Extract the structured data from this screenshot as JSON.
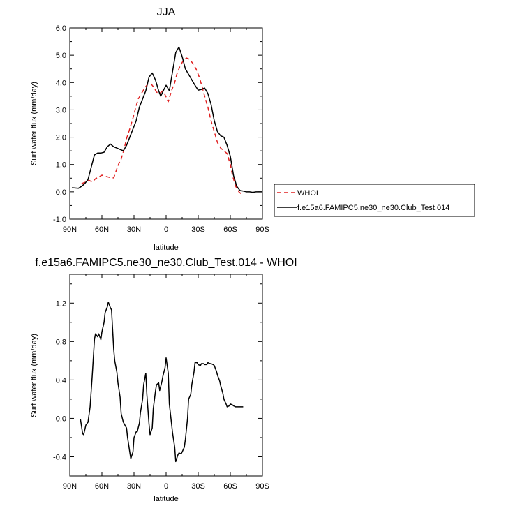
{
  "chart_data": [
    {
      "type": "line",
      "title": "JJA",
      "xlabel": "latitude",
      "ylabel": "Surf water flux (mm/day)",
      "xlim": [
        90,
        -90
      ],
      "ylim": [
        -1.0,
        6.0
      ],
      "x_ticks": [
        {
          "v": 90,
          "label": "90N"
        },
        {
          "v": 60,
          "label": "60N"
        },
        {
          "v": 30,
          "label": "30N"
        },
        {
          "v": 0,
          "label": "0"
        },
        {
          "v": -30,
          "label": "30S"
        },
        {
          "v": -60,
          "label": "60S"
        },
        {
          "v": -90,
          "label": "90S"
        }
      ],
      "y_ticks": [
        {
          "v": 6.0,
          "label": "6.0"
        },
        {
          "v": 5.0,
          "label": "5.0"
        },
        {
          "v": 4.0,
          "label": "4.0"
        },
        {
          "v": 3.0,
          "label": "3.0"
        },
        {
          "v": 2.0,
          "label": "2.0"
        },
        {
          "v": 1.0,
          "label": "1.0"
        },
        {
          "v": 0.0,
          "label": "0.0"
        },
        {
          "v": -1.0,
          "label": "-1.0"
        }
      ],
      "grid": false,
      "legend_position": "right",
      "series": [
        {
          "name": "WHOI",
          "color": "#e02020",
          "dash": "6,4",
          "x": [
            79,
            75,
            72,
            69,
            66,
            63,
            60,
            57,
            54,
            51,
            49,
            46,
            44,
            42,
            39,
            37,
            34,
            31,
            28,
            26,
            23,
            20,
            17,
            14,
            11,
            9,
            6,
            3,
            1,
            -2,
            -5,
            -8,
            -10,
            -13,
            -16,
            -19,
            -22,
            -25,
            -28,
            -31,
            -34,
            -36,
            -39,
            -42,
            -45,
            -48,
            -51,
            -54,
            -57,
            -60,
            -62,
            -65,
            -68,
            -71
          ],
          "y": [
            0.3,
            0.36,
            0.42,
            0.36,
            0.48,
            0.54,
            0.61,
            0.57,
            0.54,
            0.51,
            0.51,
            0.85,
            1.05,
            1.2,
            1.6,
            1.95,
            2.3,
            2.7,
            3.15,
            3.4,
            3.6,
            3.8,
            3.95,
            3.95,
            3.8,
            3.65,
            3.6,
            3.7,
            3.55,
            3.3,
            3.7,
            4.0,
            4.3,
            4.6,
            4.8,
            4.9,
            4.85,
            4.7,
            4.5,
            4.2,
            3.8,
            3.5,
            3.1,
            2.6,
            2.2,
            1.8,
            1.6,
            1.5,
            1.4,
            1.0,
            0.6,
            0.2,
            0.0,
            -0.1
          ]
        },
        {
          "name": "f.e15a6.FAMIPC5.ne30_ne30.Club_Test.014",
          "color": "#000000",
          "dash": "",
          "x": [
            88,
            85,
            82,
            79,
            76,
            73,
            70,
            67,
            64,
            61,
            58,
            55,
            52,
            49,
            46,
            43,
            40,
            37,
            34,
            31,
            28,
            25,
            22,
            19,
            16,
            13,
            10,
            7,
            5,
            2,
            0,
            -3,
            -6,
            -9,
            -12,
            -15,
            -18,
            -21,
            -24,
            -27,
            -30,
            -33,
            -36,
            -39,
            -42,
            -45,
            -48,
            -51,
            -54,
            -57,
            -60,
            -63,
            -66,
            -69,
            -72,
            -75,
            -78,
            -81,
            -84,
            -87,
            -90
          ],
          "y": [
            0.15,
            0.14,
            0.13,
            0.2,
            0.3,
            0.45,
            0.9,
            1.35,
            1.42,
            1.42,
            1.45,
            1.65,
            1.75,
            1.65,
            1.6,
            1.55,
            1.5,
            1.7,
            2.0,
            2.3,
            2.6,
            3.1,
            3.4,
            3.7,
            4.2,
            4.35,
            4.1,
            3.7,
            3.5,
            3.75,
            3.9,
            3.7,
            4.4,
            5.1,
            5.3,
            4.95,
            4.5,
            4.3,
            4.1,
            3.9,
            3.72,
            3.75,
            3.8,
            3.6,
            3.2,
            2.6,
            2.2,
            2.05,
            2.0,
            1.7,
            1.3,
            0.6,
            0.2,
            0.05,
            0.03,
            0.0,
            0.0,
            -0.02,
            0.0,
            0.0,
            0.0
          ]
        }
      ]
    },
    {
      "type": "line",
      "title": "f.e15a6.FAMIPC5.ne30_ne30.Club_Test.014 - WHOI",
      "xlabel": "latitude",
      "ylabel": "Surf water flux (mm/day)",
      "xlim": [
        90,
        -90
      ],
      "ylim": [
        -0.6,
        1.5
      ],
      "x_ticks": [
        {
          "v": 90,
          "label": "90N"
        },
        {
          "v": 60,
          "label": "60N"
        },
        {
          "v": 30,
          "label": "30N"
        },
        {
          "v": 0,
          "label": "0"
        },
        {
          "v": -30,
          "label": "30S"
        },
        {
          "v": -60,
          "label": "60S"
        },
        {
          "v": -90,
          "label": "90S"
        }
      ],
      "y_ticks": [
        {
          "v": 1.2,
          "label": "1.2"
        },
        {
          "v": 0.8,
          "label": "0.8"
        },
        {
          "v": 0.4,
          "label": "0.4"
        },
        {
          "v": 0.0,
          "label": "0.0"
        },
        {
          "v": -0.4,
          "label": "-0.4"
        }
      ],
      "grid": false,
      "series": [
        {
          "name": "",
          "color": "#000000",
          "dash": "",
          "x": [
            80,
            78,
            77,
            75,
            73,
            71,
            69,
            67,
            66,
            64,
            63,
            61,
            60,
            58,
            57,
            55,
            54,
            52,
            51,
            49,
            48,
            46,
            45,
            43,
            42,
            40,
            39,
            37,
            36,
            34,
            33,
            31,
            30,
            28,
            27,
            25,
            24,
            22,
            21,
            19,
            18,
            16,
            15,
            13,
            12,
            10,
            9,
            7,
            6,
            4,
            3,
            1,
            0,
            -2,
            -3,
            -5,
            -6,
            -8,
            -9,
            -11,
            -12,
            -14,
            -15,
            -17,
            -18,
            -20,
            -21,
            -23,
            -24,
            -26,
            -27,
            -29,
            -30,
            -32,
            -33,
            -35,
            -36,
            -38,
            -39,
            -41,
            -42,
            -44,
            -45,
            -47,
            -48,
            -50,
            -51,
            -53,
            -54,
            -56,
            -57,
            -59,
            -60,
            -62,
            -63,
            -65,
            -66,
            -68,
            -69,
            -71,
            -72
          ],
          "y": [
            -0.01,
            -0.16,
            -0.17,
            -0.07,
            -0.04,
            0.12,
            0.45,
            0.82,
            0.88,
            0.85,
            0.88,
            0.82,
            0.9,
            1.0,
            1.1,
            1.16,
            1.21,
            1.15,
            1.13,
            0.72,
            0.6,
            0.48,
            0.37,
            0.22,
            0.05,
            -0.04,
            -0.06,
            -0.1,
            -0.2,
            -0.35,
            -0.42,
            -0.35,
            -0.2,
            -0.14,
            -0.14,
            -0.05,
            0.06,
            0.2,
            0.35,
            0.47,
            0.25,
            -0.06,
            -0.17,
            -0.1,
            0.1,
            0.28,
            0.35,
            0.37,
            0.29,
            0.38,
            0.44,
            0.53,
            0.63,
            0.47,
            0.15,
            -0.05,
            -0.15,
            -0.3,
            -0.45,
            -0.38,
            -0.36,
            -0.37,
            -0.35,
            -0.3,
            -0.22,
            0.0,
            0.2,
            0.25,
            0.35,
            0.48,
            0.58,
            0.58,
            0.56,
            0.55,
            0.57,
            0.57,
            0.56,
            0.56,
            0.58,
            0.57,
            0.57,
            0.56,
            0.55,
            0.49,
            0.45,
            0.39,
            0.34,
            0.26,
            0.2,
            0.15,
            0.12,
            0.13,
            0.15,
            0.14,
            0.13,
            0.12,
            0.12,
            0.12,
            0.12,
            0.12,
            0.12
          ]
        }
      ]
    }
  ]
}
